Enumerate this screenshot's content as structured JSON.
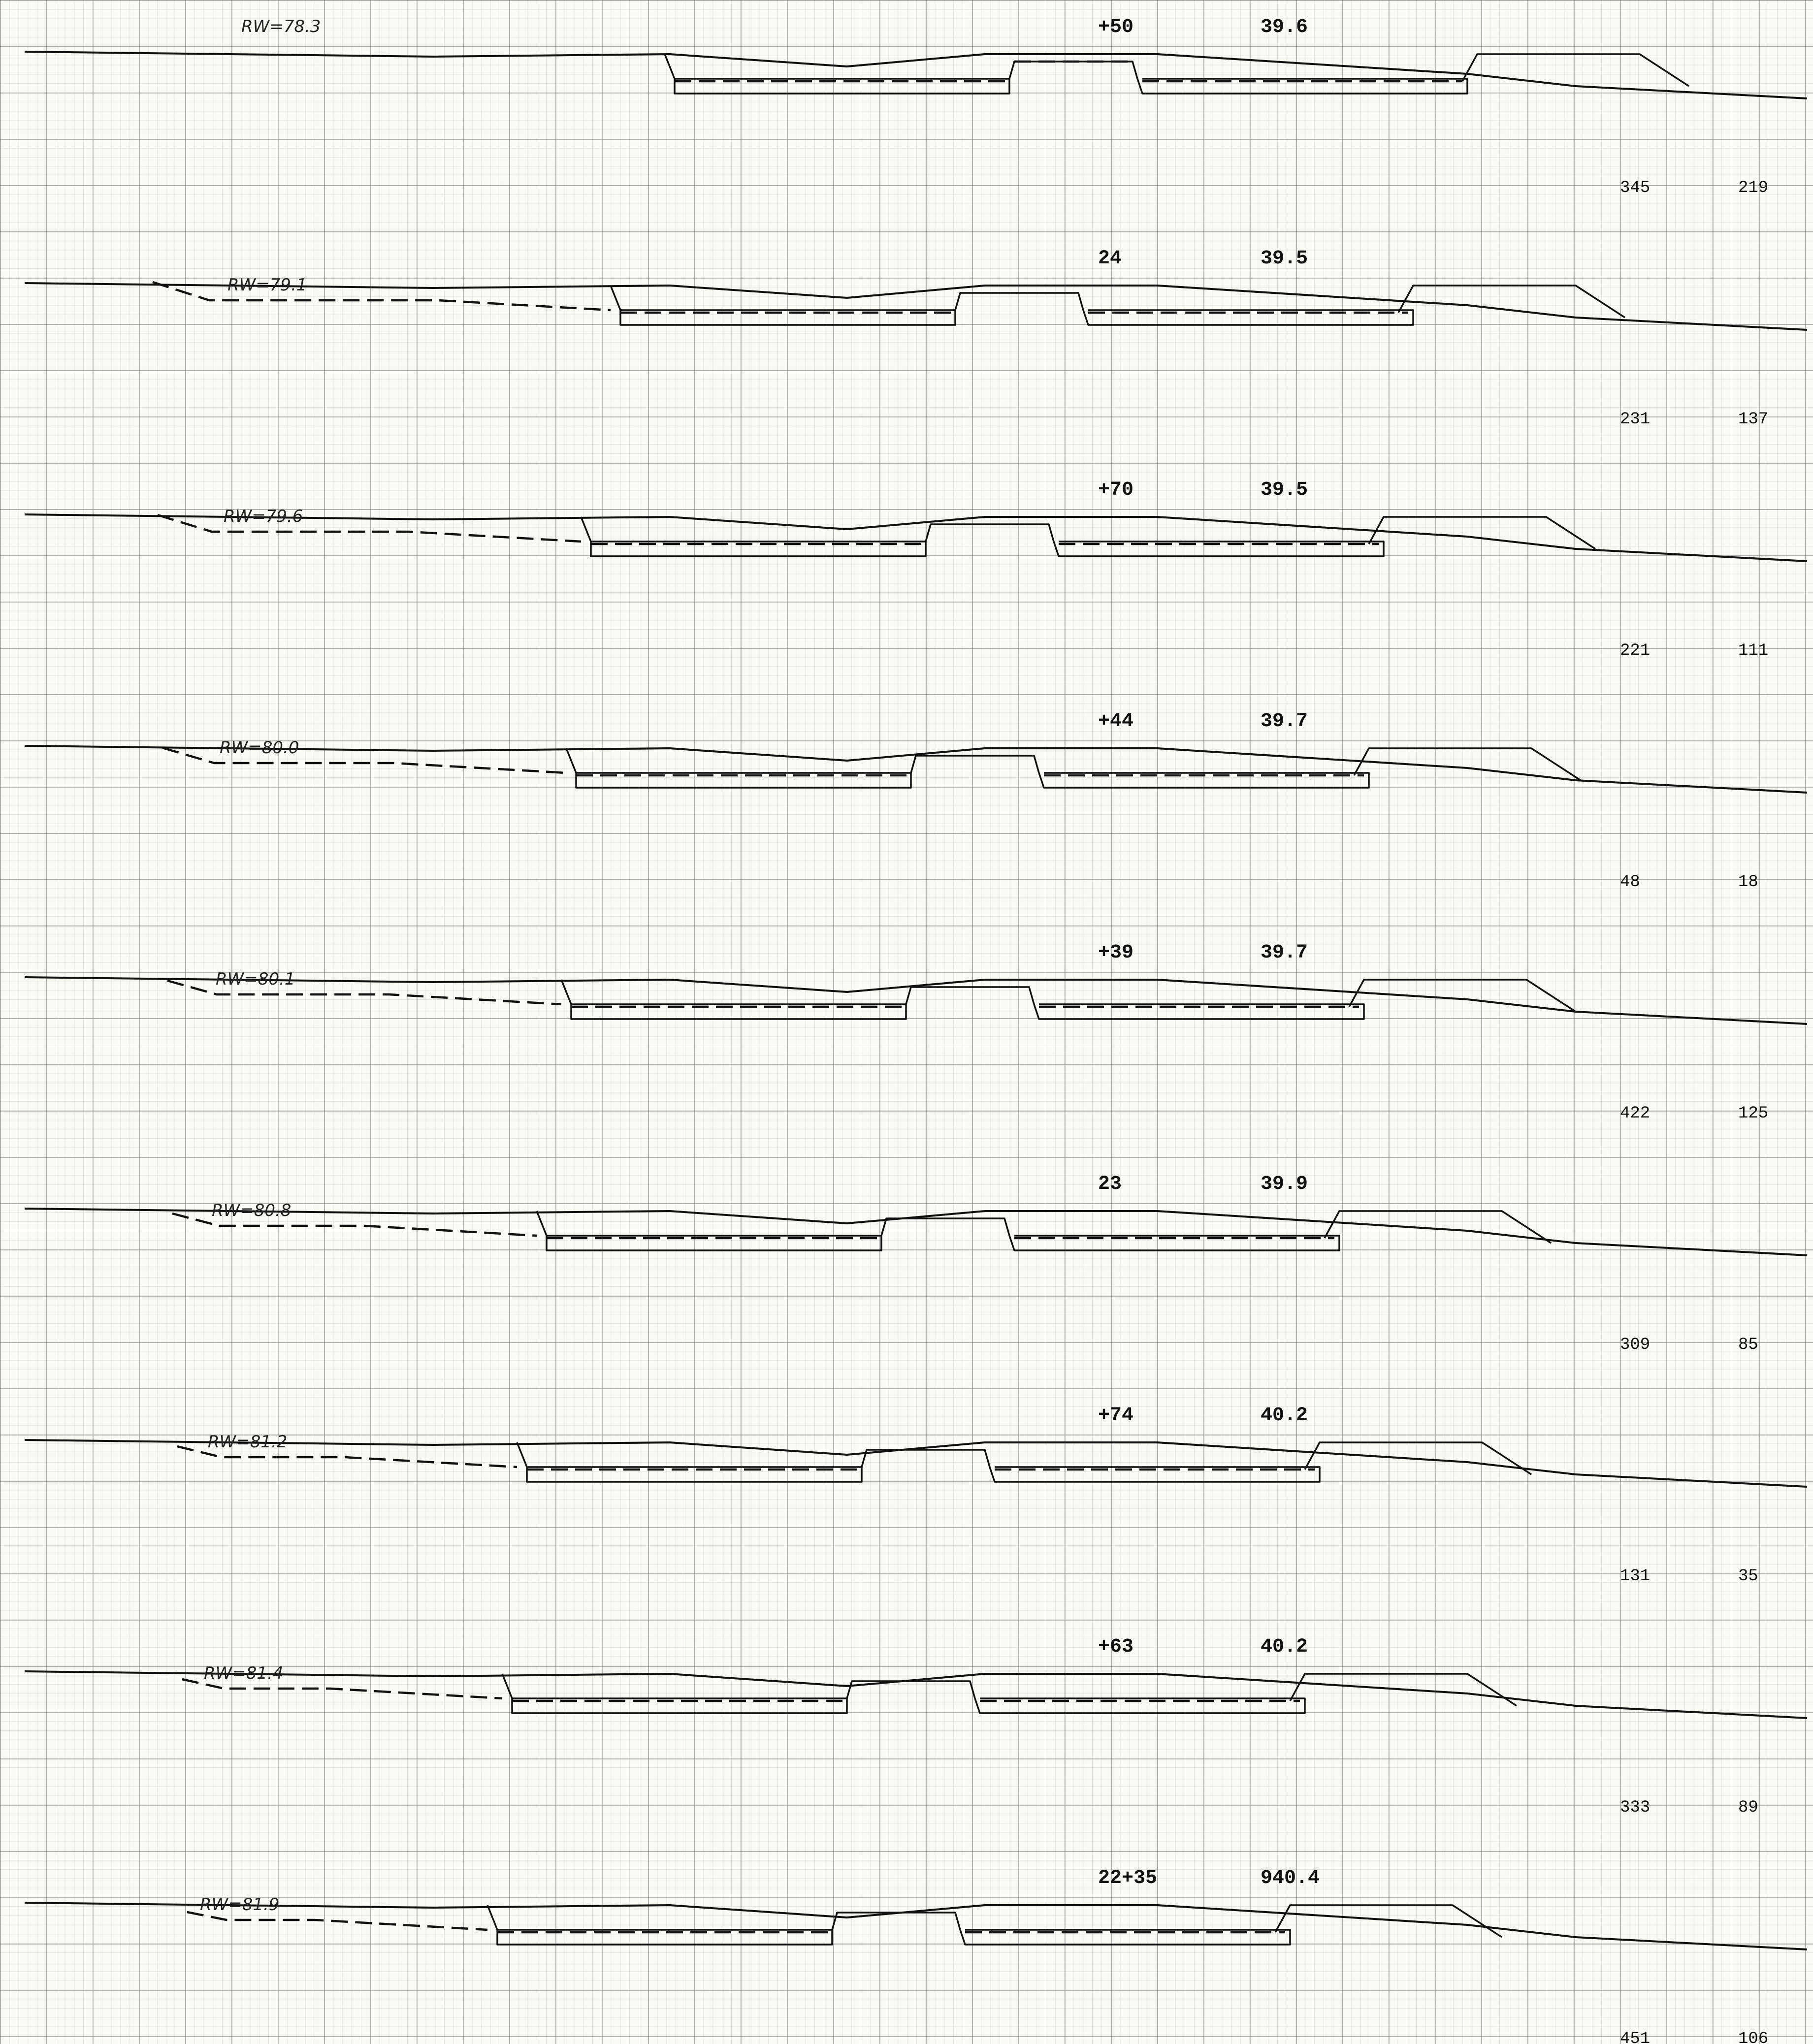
{
  "sheet": "cross-section sheet",
  "sections": [
    {
      "station": "+50",
      "elevation": "39.6",
      "rw": "RW=78.3",
      "qty_a": "345",
      "qty_b": "219"
    },
    {
      "station": "24",
      "elevation": "39.5",
      "rw": "RW=79.1",
      "qty_a": "231",
      "qty_b": "137"
    },
    {
      "station": "+70",
      "elevation": "39.5",
      "rw": "RW=79.6",
      "qty_a": "221",
      "qty_b": "111"
    },
    {
      "station": "+44",
      "elevation": "39.7",
      "rw": "RW=80.0",
      "qty_a": "48",
      "qty_b": "18"
    },
    {
      "station": "+39",
      "elevation": "39.7",
      "rw": "RW=80.1",
      "qty_a": "422",
      "qty_b": "125"
    },
    {
      "station": "23",
      "elevation": "39.9",
      "rw": "RW=80.8",
      "qty_a": "309",
      "qty_b": "85"
    },
    {
      "station": "+74",
      "elevation": "40.2",
      "rw": "RW=81.2",
      "qty_a": "131",
      "qty_b": "35"
    },
    {
      "station": "+63",
      "elevation": "40.2",
      "rw": "RW=81.4",
      "qty_a": "333",
      "qty_b": "89"
    },
    {
      "station": "22+35",
      "elevation": "940.4",
      "rw": "RW=81.9",
      "qty_a": "451",
      "qty_b": "106"
    }
  ]
}
